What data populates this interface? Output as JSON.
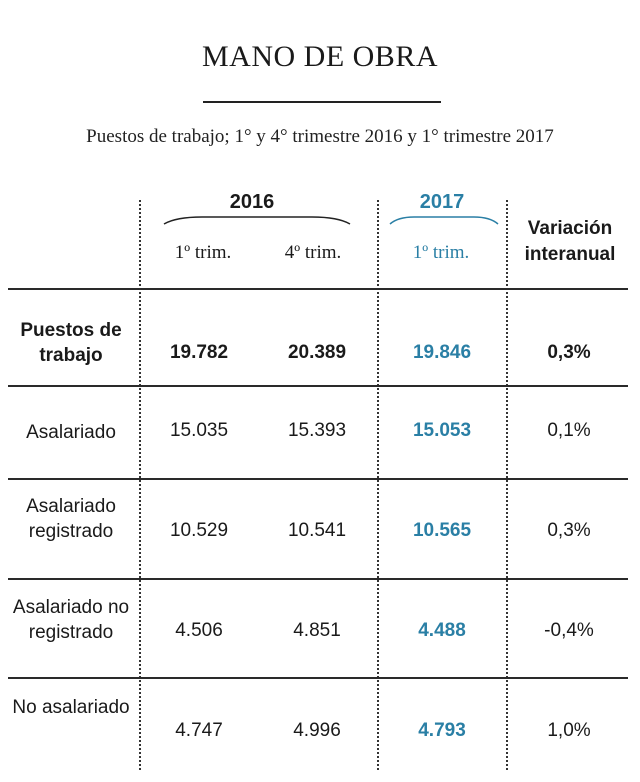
{
  "title": "MANO DE OBRA",
  "subtitle": "Puestos de trabajo; 1° y 4° trimestre 2016 y 1° trimestre 2017",
  "colors": {
    "accent": "#2a7fa5",
    "text": "#1a1a1a",
    "rule": "#2a2a2a"
  },
  "header": {
    "year_2016": "2016",
    "year_2017": "2017",
    "col_2016_q1": "1º trim.",
    "col_2016_q4": "4º trim.",
    "col_2017_q1": "1º trim.",
    "variation": "Variación interanual"
  },
  "chart_data": {
    "type": "table",
    "title": "MANO DE OBRA",
    "subtitle": "Puestos de trabajo; 1° y 4° trimestre 2016 y 1° trimestre 2017",
    "columns": [
      "2016 1º trim.",
      "2016 4º trim.",
      "2017 1º trim.",
      "Variación interanual"
    ],
    "rows": [
      {
        "label": "Puestos de trabajo",
        "bold": true,
        "values": [
          "19.782",
          "20.389",
          "19.846",
          "0,3%"
        ]
      },
      {
        "label": "Asalariado",
        "bold": false,
        "values": [
          "15.035",
          "15.393",
          "15.053",
          "0,1%"
        ]
      },
      {
        "label": "Asalariado registrado",
        "bold": false,
        "values": [
          "10.529",
          "10.541",
          "10.565",
          "0,3%"
        ]
      },
      {
        "label": "Asalariado no registrado",
        "bold": false,
        "values": [
          "4.506",
          "4.851",
          "4.488",
          "-0,4%"
        ]
      },
      {
        "label": "No asalariado",
        "bold": false,
        "values": [
          "4.747",
          "4.996",
          "4.793",
          "1,0%"
        ]
      }
    ]
  }
}
